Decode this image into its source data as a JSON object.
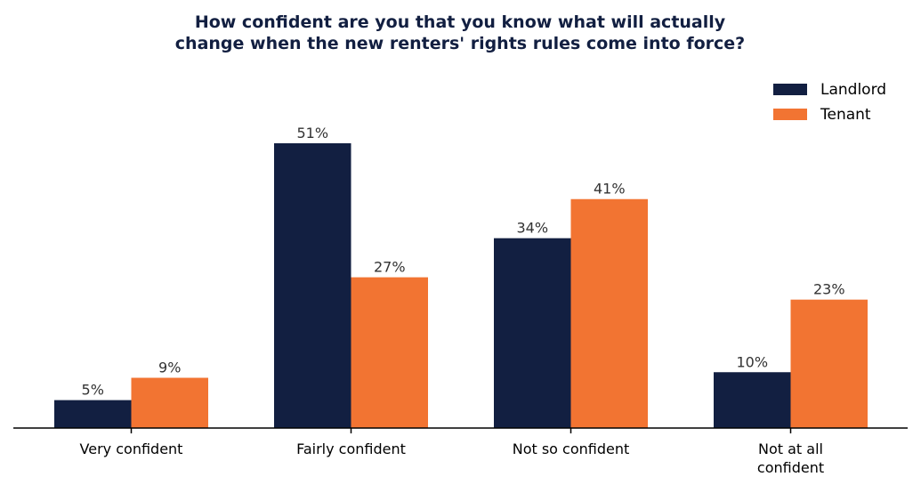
{
  "chart_data": {
    "type": "bar",
    "title_lines": [
      "How confident are you that you know what will actually",
      "change when the new renters' rights rules come into force?"
    ],
    "categories": [
      [
        "Very confident"
      ],
      [
        "Fairly confident"
      ],
      [
        "Not so confident"
      ],
      [
        "Not at all",
        "confident"
      ]
    ],
    "series": [
      {
        "name": "Landlord",
        "color": "#121f41",
        "values": [
          5,
          51,
          34,
          10
        ],
        "labels": [
          "5%",
          "51%",
          "34%",
          "10%"
        ]
      },
      {
        "name": "Tenant",
        "color": "#f27432",
        "values": [
          9,
          27,
          41,
          23
        ],
        "labels": [
          "9%",
          "27%",
          "41%",
          "23%"
        ]
      }
    ],
    "ylim": [
      0,
      60
    ],
    "legend_position": "top-right",
    "y_axis_visible": false,
    "grid": false
  }
}
